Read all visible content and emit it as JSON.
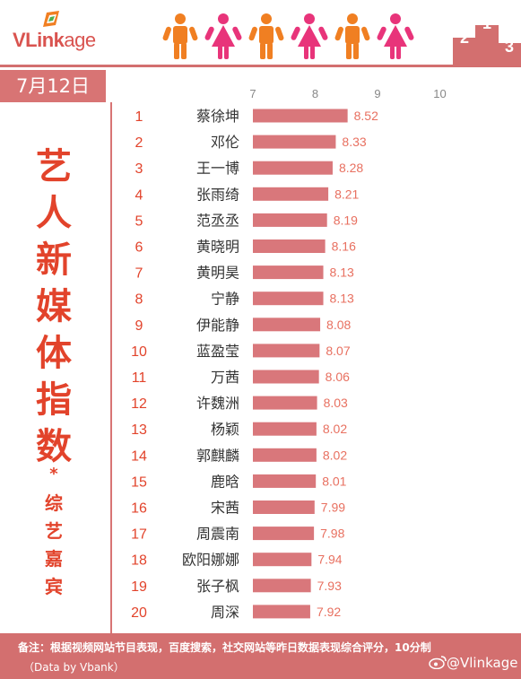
{
  "brand": {
    "logo_bold": "VLink",
    "logo_tail": "age"
  },
  "header": {
    "date": "7月12日"
  },
  "side": {
    "title_chars": [
      "艺",
      "人",
      "新",
      "媒",
      "体",
      "指",
      "数"
    ],
    "star": "*",
    "sub_chars": [
      "综",
      "艺",
      "嘉",
      "宾"
    ]
  },
  "podium_numbers": [
    "2",
    "1",
    "3"
  ],
  "colors": {
    "bar": "#d9777b",
    "rank": "#e2432b",
    "value": "#e87060",
    "accent": "#d36f6f",
    "male_icon": "#f07f22",
    "female_icon": "#e8347a"
  },
  "footer": {
    "note": "备注：根据视频网站节目表现，百度搜索，社交网站等昨日数据表现综合评分，10分制",
    "credit": "（Data by Vbank）",
    "weibo": "@Vlinkage"
  },
  "chart_data": {
    "type": "bar",
    "orientation": "horizontal",
    "axis_ticks": [
      "7",
      "8",
      "9",
      "10"
    ],
    "xlim": [
      7,
      10
    ],
    "grid": false,
    "ranks": [
      "1",
      "2",
      "3",
      "4",
      "5",
      "6",
      "7",
      "8",
      "9",
      "10",
      "11",
      "12",
      "13",
      "14",
      "15",
      "16",
      "17",
      "18",
      "19",
      "20"
    ],
    "categories": [
      "蔡徐坤",
      "邓伦",
      "王一博",
      "张雨绮",
      "范丞丞",
      "黄晓明",
      "黄明昊",
      "宁静",
      "伊能静",
      "蓝盈莹",
      "万茜",
      "许魏洲",
      "杨颖",
      "郭麒麟",
      "鹿晗",
      "宋茜",
      "周震南",
      "欧阳娜娜",
      "张子枫",
      "周深"
    ],
    "values": [
      8.52,
      8.33,
      8.28,
      8.21,
      8.19,
      8.16,
      8.13,
      8.13,
      8.08,
      8.07,
      8.06,
      8.03,
      8.02,
      8.02,
      8.01,
      7.99,
      7.98,
      7.94,
      7.93,
      7.92
    ],
    "value_labels": [
      "8.52",
      "8.33",
      "8.28",
      "8.21",
      "8.19",
      "8.16",
      "8.13",
      "8.13",
      "8.08",
      "8.07",
      "8.06",
      "8.03",
      "8.02",
      "8.02",
      "8.01",
      "7.99",
      "7.98",
      "7.94",
      "7.93",
      "7.92"
    ]
  }
}
